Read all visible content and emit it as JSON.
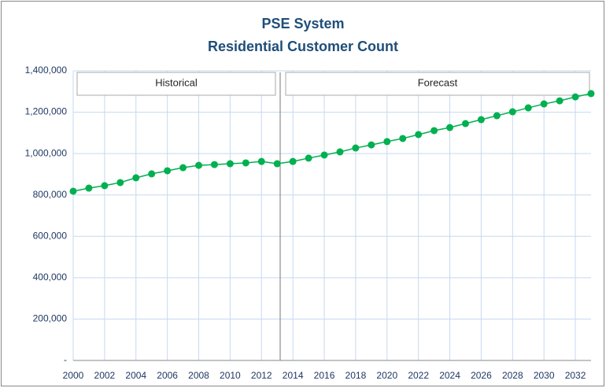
{
  "chart_data": {
    "type": "line",
    "title": [
      "PSE System",
      "Residential Customer Count"
    ],
    "annotations": [
      "Historical",
      "Forecast"
    ],
    "x": [
      2000,
      2001,
      2002,
      2003,
      2004,
      2005,
      2006,
      2007,
      2008,
      2009,
      2010,
      2011,
      2012,
      2013,
      2014,
      2015,
      2016,
      2017,
      2018,
      2019,
      2020,
      2021,
      2022,
      2023,
      2024,
      2025,
      2026,
      2027,
      2028,
      2029,
      2030,
      2031,
      2032,
      2033
    ],
    "series": [
      {
        "color": "#00b050",
        "values": [
          818000,
          833000,
          845000,
          860000,
          883000,
          902000,
          917000,
          932000,
          943000,
          947000,
          951000,
          955000,
          962000,
          951000,
          962000,
          978000,
          993000,
          1008000,
          1027000,
          1042000,
          1058000,
          1073000,
          1092000,
          1111000,
          1126000,
          1145000,
          1164000,
          1183000,
          1202000,
          1221000,
          1240000,
          1255000,
          1274000,
          1290000
        ]
      }
    ],
    "xlim": [
      2000,
      2033
    ],
    "xticks": [
      2000,
      2002,
      2004,
      2006,
      2008,
      2010,
      2012,
      2014,
      2016,
      2018,
      2020,
      2022,
      2024,
      2026,
      2028,
      2030,
      2032
    ],
    "ylim": [
      0,
      1400000
    ],
    "yticks": [
      {
        "value": 0,
        "label": "-"
      },
      {
        "value": 200000,
        "label": "200,000"
      },
      {
        "value": 400000,
        "label": "400,000"
      },
      {
        "value": 600000,
        "label": "600,000"
      },
      {
        "value": 800000,
        "label": "800,000"
      },
      {
        "value": 1000000,
        "label": "1,000,000"
      },
      {
        "value": 1200000,
        "label": "1,200,000"
      },
      {
        "value": 1400000,
        "label": "1,400,000"
      }
    ],
    "grid": true
  }
}
